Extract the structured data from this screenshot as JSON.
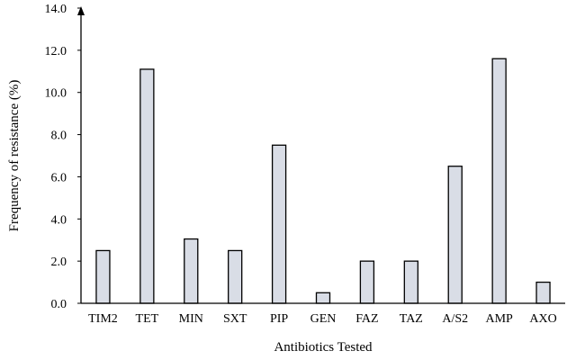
{
  "chart_data": {
    "type": "bar",
    "title": "",
    "xlabel": "Antibiotics Tested",
    "ylabel": "Frequency of resistance (%)",
    "ylim": [
      0,
      14
    ],
    "yticks": [
      "0.0",
      "2.0",
      "4.0",
      "6.0",
      "8.0",
      "10.0",
      "12.0",
      "14.0"
    ],
    "categories": [
      "TIM2",
      "TET",
      "MIN",
      "SXT",
      "PIP",
      "GEN",
      "FAZ",
      "TAZ",
      "A/S2",
      "AMP",
      "AXO"
    ],
    "values": [
      2.5,
      11.1,
      3.05,
      2.5,
      7.5,
      0.5,
      2.0,
      2.0,
      6.5,
      11.6,
      1.0
    ],
    "grid": false,
    "legend": "none",
    "colors": {
      "bar_fill": "#d9dde6",
      "bar_stroke": "#000000",
      "axis": "#000000"
    }
  }
}
